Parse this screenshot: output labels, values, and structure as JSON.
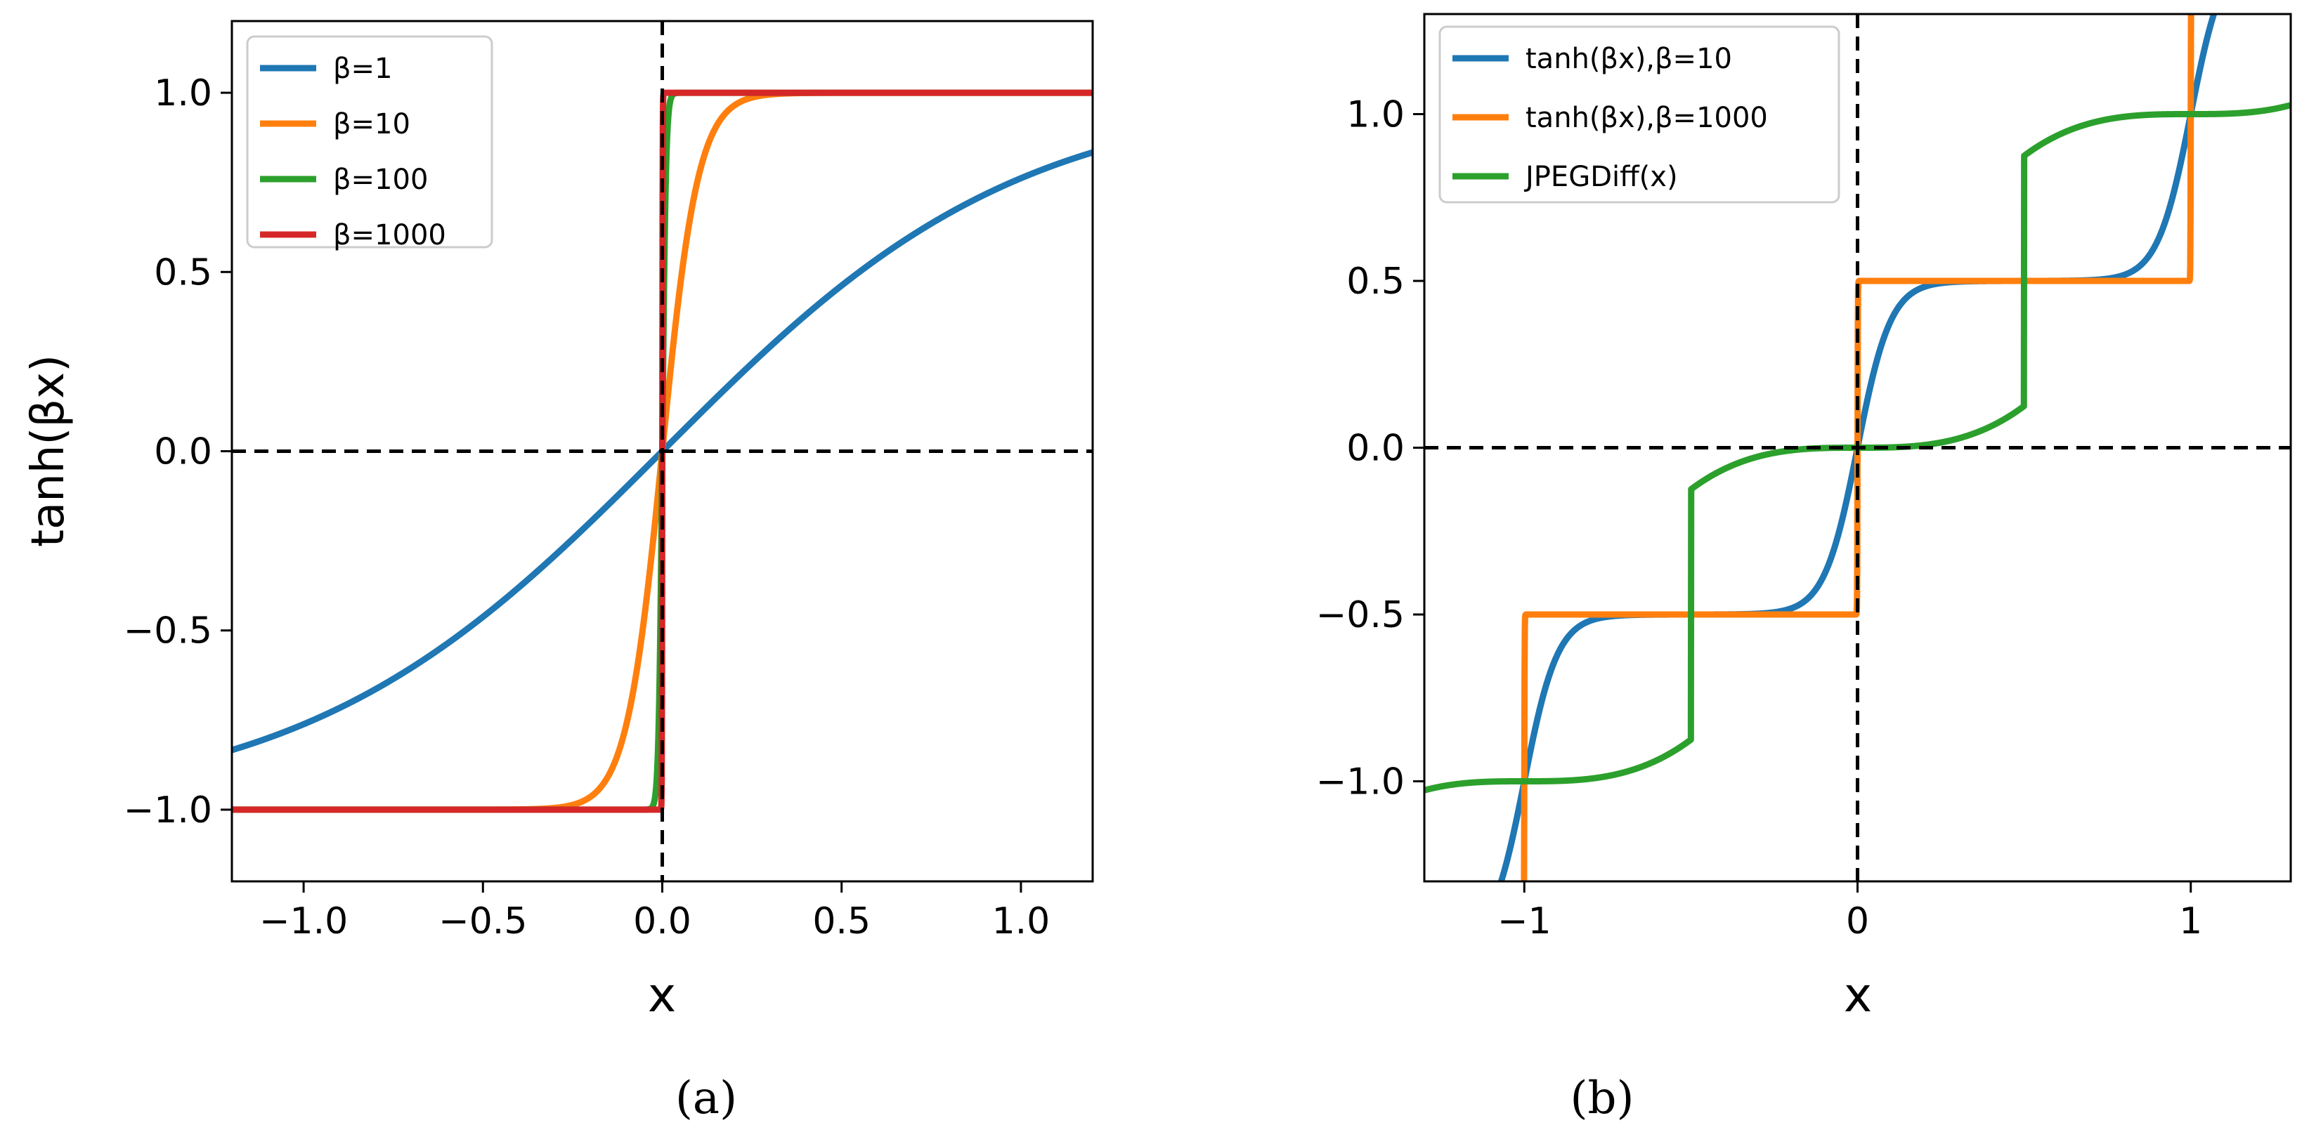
{
  "chart_data": [
    {
      "type": "line",
      "panel_caption": "(a)",
      "title": "",
      "xlabel": "x",
      "ylabel": "tanh(βx)",
      "xlim": [
        -1.2,
        1.2
      ],
      "ylim": [
        -1.2,
        1.2
      ],
      "xticks": [
        -1.0,
        -0.5,
        0.0,
        0.5,
        1.0
      ],
      "xtick_labels": [
        "−1.0",
        "−0.5",
        "0.0",
        "0.5",
        "1.0"
      ],
      "yticks": [
        -1.0,
        -0.5,
        0.0,
        0.5,
        1.0
      ],
      "ytick_labels": [
        "−1.0",
        "−0.5",
        "0.0",
        "0.5",
        "1.0"
      ],
      "grid": false,
      "legend_position": "top-left",
      "reference_lines": [
        "x=0 dashed",
        "y=0 dashed"
      ],
      "series": [
        {
          "name": "β=1",
          "function": "tanh",
          "beta": 1,
          "color": "#1f77b4"
        },
        {
          "name": "β=10",
          "function": "tanh",
          "beta": 10,
          "color": "#ff7f0e"
        },
        {
          "name": "β=100",
          "function": "tanh",
          "beta": 100,
          "color": "#2ca02c"
        },
        {
          "name": "β=1000",
          "function": "tanh",
          "beta": 1000,
          "color": "#d62728"
        }
      ]
    },
    {
      "type": "line",
      "panel_caption": "(b)",
      "title": "",
      "xlabel": "x",
      "ylabel": "",
      "xlim": [
        -1.3,
        1.3
      ],
      "ylim": [
        -1.3,
        1.3
      ],
      "xticks": [
        -1,
        0,
        1
      ],
      "xtick_labels": [
        "−1",
        "0",
        "1"
      ],
      "yticks": [
        -1.0,
        -0.5,
        0.0,
        0.5,
        1.0
      ],
      "ytick_labels": [
        "−1.0",
        "−0.5",
        "0.0",
        "0.5",
        "1.0"
      ],
      "grid": false,
      "legend_position": "top-left",
      "reference_lines": [
        "x=0 dashed",
        "y=0 dashed"
      ],
      "series": [
        {
          "name": "tanh(βx),β=10",
          "function": "rounding-tanh",
          "beta": 10,
          "color": "#1f77b4"
        },
        {
          "name": "tanh(βx),β=1000",
          "function": "rounding-tanh",
          "beta": 1000,
          "color": "#ff7f0e"
        },
        {
          "name": "JPEGDiff(x)",
          "function": "jpegdiff",
          "color": "#2ca02c"
        }
      ]
    }
  ]
}
